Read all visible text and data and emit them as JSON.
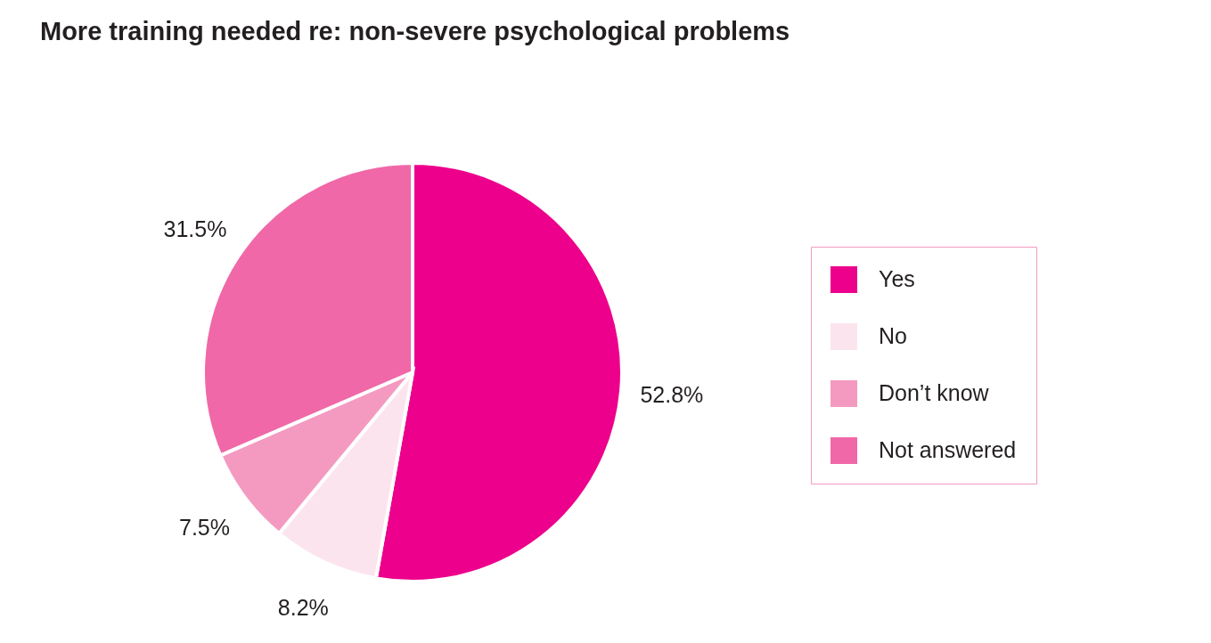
{
  "chart_data": {
    "type": "pie",
    "title": "More training needed re: non-severe psychological problems",
    "categories": [
      "Yes",
      "No",
      "Don’t know",
      "Not answered"
    ],
    "values": [
      52.8,
      8.2,
      7.5,
      31.5
    ],
    "value_labels": [
      "52.8%",
      "8.2%",
      "7.5%",
      "31.5%"
    ],
    "colors": [
      "#ec008c",
      "#fce4ef",
      "#f49ac1",
      "#f068a8"
    ],
    "legend": "right"
  }
}
